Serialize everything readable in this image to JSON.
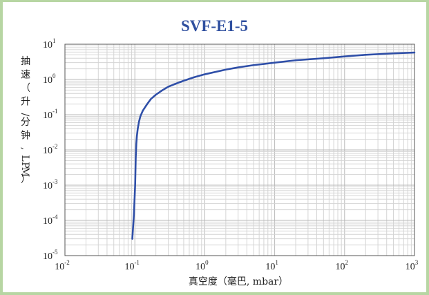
{
  "chart_data": {
    "type": "line",
    "title": "SVF-E1-5",
    "xlabel": "真空度（毫巴, mbar）",
    "ylabel": "抽速（升/分钟, LPM）",
    "x_scale": "log",
    "y_scale": "log",
    "xlim": [
      0.01,
      1000
    ],
    "ylim": [
      1e-05,
      10
    ],
    "x_ticks": [
      {
        "base": "10",
        "exp": "-2"
      },
      {
        "base": "10",
        "exp": "-1"
      },
      {
        "base": "10",
        "exp": "0"
      },
      {
        "base": "10",
        "exp": "1"
      },
      {
        "base": "10",
        "exp": "2"
      },
      {
        "base": "10",
        "exp": "3"
      }
    ],
    "y_ticks": [
      {
        "base": "10",
        "exp": "1"
      },
      {
        "base": "10",
        "exp": "0"
      },
      {
        "base": "10",
        "exp": "-1"
      },
      {
        "base": "10",
        "exp": "-2"
      },
      {
        "base": "10",
        "exp": "-3"
      },
      {
        "base": "10",
        "exp": "-4"
      },
      {
        "base": "10",
        "exp": "-5"
      }
    ],
    "grid": true,
    "line_color": "#2f4fa8",
    "title_color": "#2f4f9f",
    "series": [
      {
        "x": [
          0.092,
          0.097,
          0.101,
          0.103,
          0.105,
          0.107,
          0.11,
          0.115,
          0.12,
          0.13,
          0.15,
          0.17,
          0.2,
          0.25,
          0.3,
          0.4,
          0.5,
          0.7,
          1,
          2,
          3,
          5,
          10,
          20,
          50,
          100,
          200,
          500,
          1000
        ],
        "y": [
          3e-05,
          0.00015,
          0.001,
          0.006,
          0.015,
          0.025,
          0.04,
          0.065,
          0.09,
          0.13,
          0.2,
          0.28,
          0.37,
          0.5,
          0.62,
          0.78,
          0.92,
          1.15,
          1.4,
          1.9,
          2.2,
          2.55,
          3.0,
          3.5,
          4.0,
          4.5,
          5.0,
          5.5,
          5.8
        ]
      }
    ]
  }
}
